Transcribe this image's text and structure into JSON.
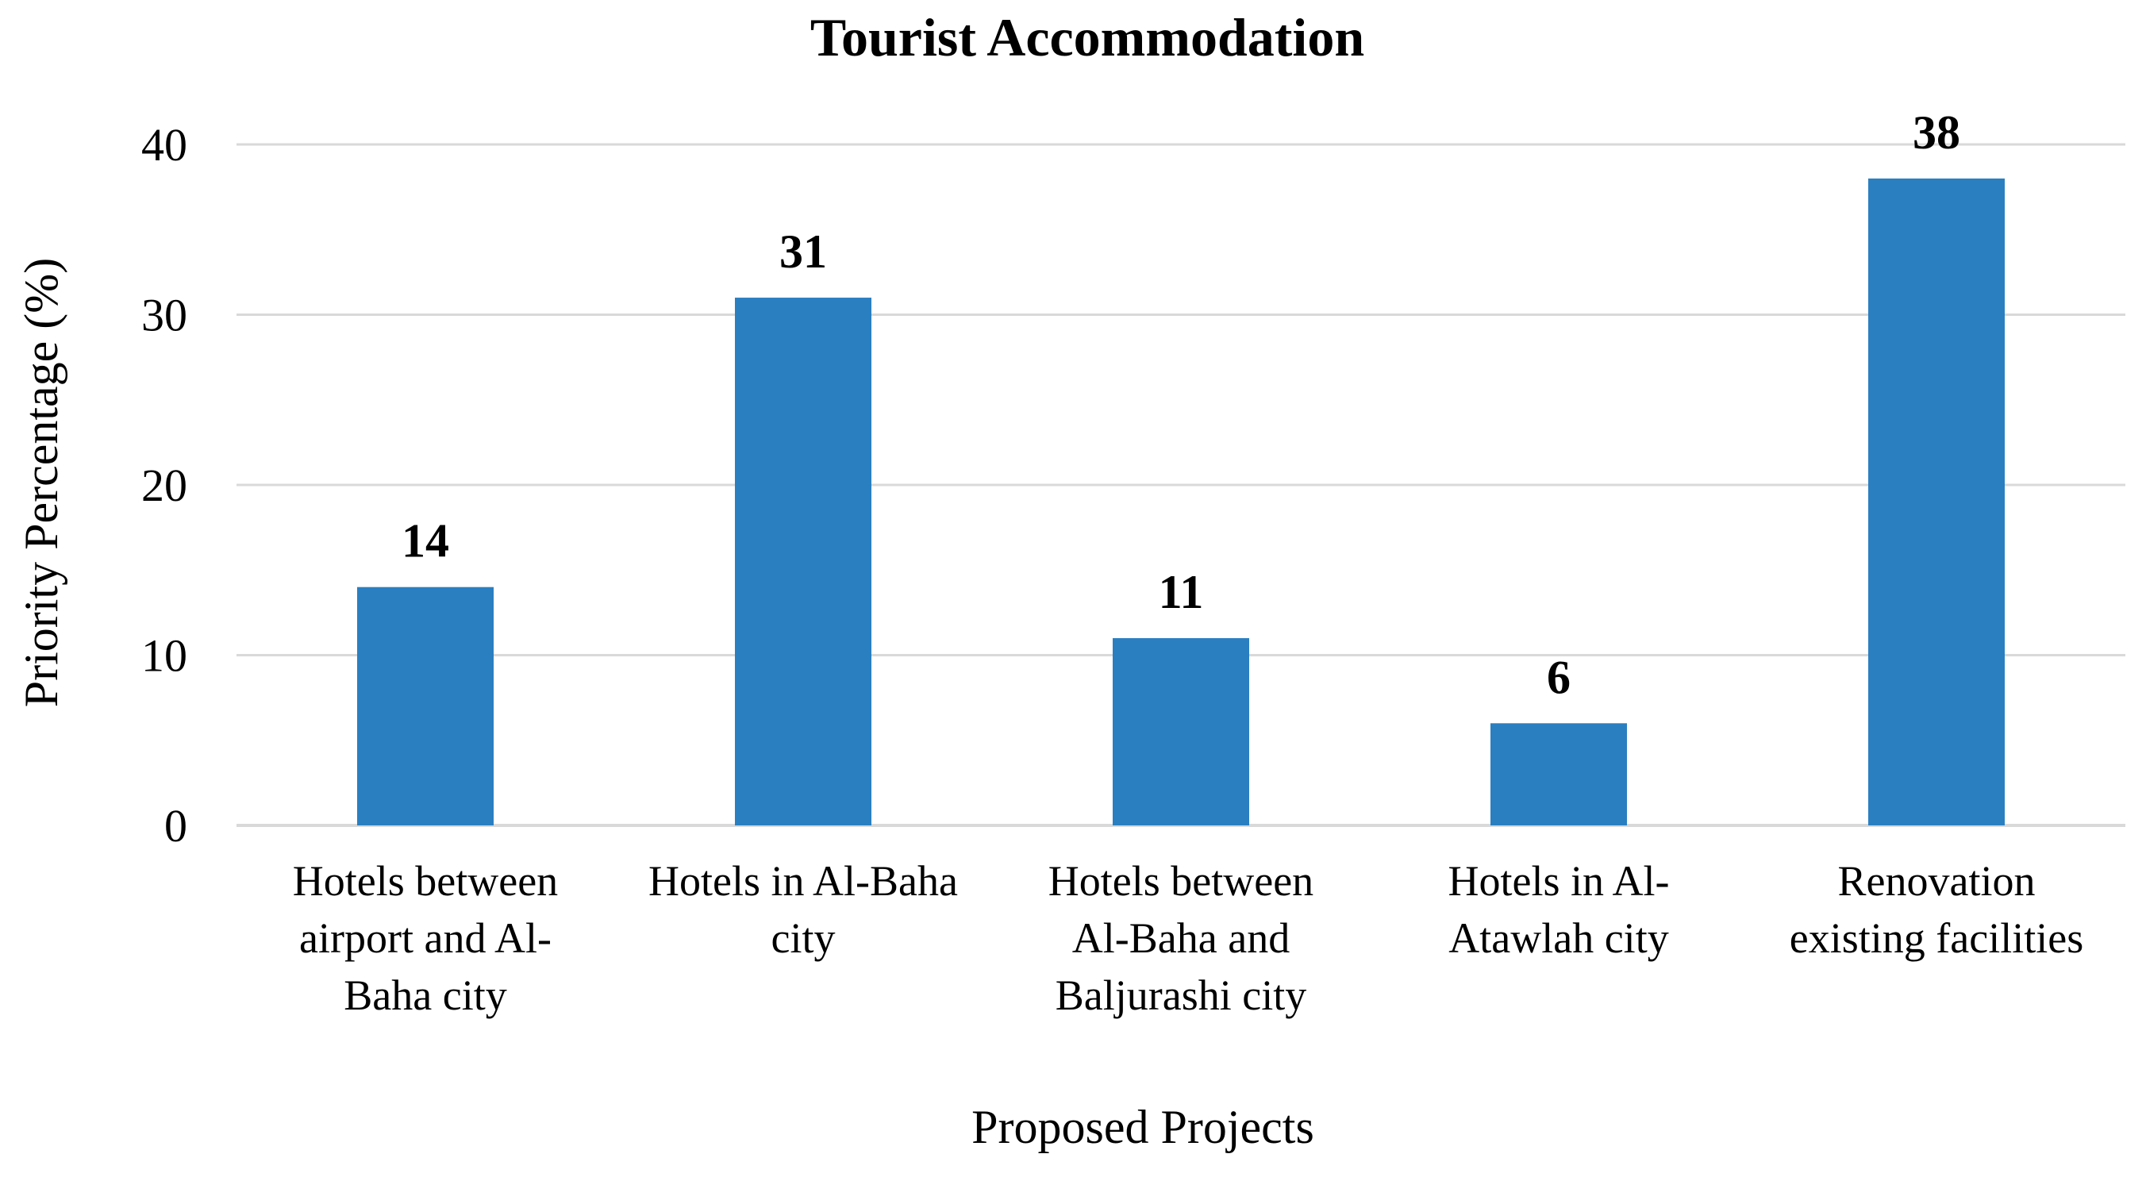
{
  "chart_data": {
    "type": "bar",
    "title": "Tourist Accommodation",
    "xlabel": "Proposed Projects",
    "ylabel": "Priority Percentage (%)",
    "ylim": [
      0,
      40
    ],
    "yticks": [
      "0",
      "10",
      "20",
      "30",
      "40"
    ],
    "grid": true,
    "legend": "none",
    "bar_color": "#2a7fc1",
    "grid_color": "#d9d9d9",
    "categories": [
      [
        "Hotels between",
        "airport and Al-",
        "Baha city"
      ],
      [
        "Hotels in Al-Baha",
        "city"
      ],
      [
        "Hotels between",
        "Al-Baha and",
        "Baljurashi city"
      ],
      [
        "Hotels in Al-",
        "Atawlah city"
      ],
      [
        "Renovation",
        "existing facilities"
      ]
    ],
    "values": [
      14,
      31,
      11,
      6,
      38
    ],
    "value_labels": [
      "14",
      "31",
      "11",
      "6",
      "38"
    ]
  }
}
